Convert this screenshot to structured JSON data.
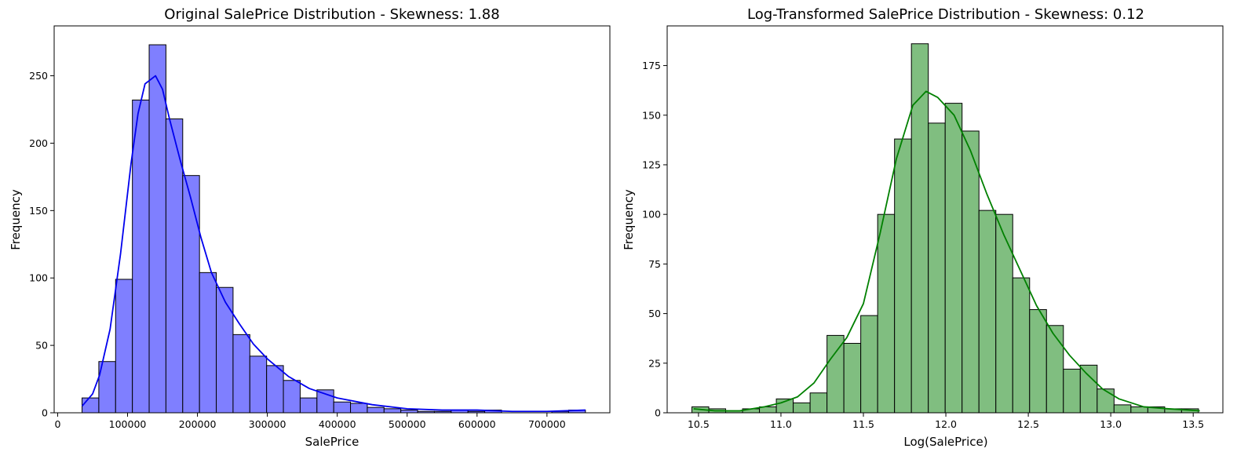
{
  "chart_data": [
    {
      "type": "bar",
      "title": "Original SalePrice Distribution - Skewness: 1.88",
      "xlabel": "SalePrice",
      "ylabel": "Frequency",
      "xlim": [
        -5000,
        790000
      ],
      "ylim": [
        0,
        287
      ],
      "xticks": [
        0,
        100000,
        200000,
        300000,
        400000,
        500000,
        600000,
        700000
      ],
      "yticks": [
        0,
        50,
        100,
        150,
        200,
        250
      ],
      "bin_start": 34900,
      "bin_width": 24003,
      "values": [
        11,
        38,
        99,
        232,
        273,
        218,
        176,
        104,
        93,
        58,
        42,
        35,
        24,
        11,
        17,
        8,
        7,
        4,
        3,
        2,
        1,
        1,
        2,
        1,
        2,
        0,
        0,
        0,
        1,
        2
      ],
      "kde_x": [
        35000,
        50000,
        60000,
        75000,
        90000,
        105000,
        115000,
        125000,
        140000,
        150000,
        160000,
        175000,
        190000,
        205000,
        220000,
        240000,
        260000,
        280000,
        300000,
        330000,
        360000,
        400000,
        450000,
        500000,
        550000,
        600000,
        650000,
        700000,
        755000
      ],
      "kde_y": [
        5,
        14,
        28,
        62,
        118,
        185,
        222,
        244,
        250,
        240,
        218,
        188,
        160,
        130,
        104,
        82,
        66,
        51,
        40,
        27,
        18,
        11,
        6,
        3,
        2,
        2,
        1,
        1,
        2
      ],
      "bar_color": "#7f7fff",
      "kde_color": "#0000ee",
      "edge_color": "#000000"
    },
    {
      "type": "bar",
      "title": "Log-Transformed SalePrice Distribution - Skewness: 0.12",
      "xlabel": "Log(SalePrice)",
      "ylabel": "Frequency",
      "xlim": [
        10.31,
        13.68
      ],
      "ylim": [
        0,
        195
      ],
      "xticks": [
        10.5,
        11.0,
        11.5,
        12.0,
        12.5,
        13.0,
        13.5
      ],
      "xtick_labels": [
        "10.5",
        "11.0",
        "11.5",
        "12.0",
        "12.5",
        "13.0",
        "13.5"
      ],
      "yticks": [
        0,
        25,
        50,
        75,
        100,
        125,
        150,
        175
      ],
      "bin_start": 10.46,
      "bin_width": 0.1024,
      "values": [
        3,
        2,
        1,
        2,
        3,
        7,
        5,
        10,
        39,
        35,
        49,
        100,
        138,
        186,
        146,
        156,
        142,
        102,
        100,
        68,
        52,
        44,
        22,
        24,
        12,
        4,
        3,
        3,
        2,
        2
      ],
      "kde_x": [
        10.47,
        10.6,
        10.75,
        10.9,
        11.0,
        11.1,
        11.2,
        11.3,
        11.4,
        11.5,
        11.6,
        11.7,
        11.8,
        11.88,
        11.95,
        12.05,
        12.15,
        12.25,
        12.35,
        12.45,
        12.55,
        12.65,
        12.75,
        12.85,
        12.95,
        13.05,
        13.2,
        13.35,
        13.54
      ],
      "kde_y": [
        2,
        1,
        1,
        3,
        5,
        8,
        15,
        27,
        38,
        55,
        90,
        128,
        155,
        162,
        159,
        150,
        132,
        110,
        90,
        72,
        54,
        40,
        29,
        20,
        12,
        7,
        3,
        2,
        1
      ],
      "bar_color": "#80be80",
      "kde_color": "#008000",
      "edge_color": "#000000"
    }
  ]
}
